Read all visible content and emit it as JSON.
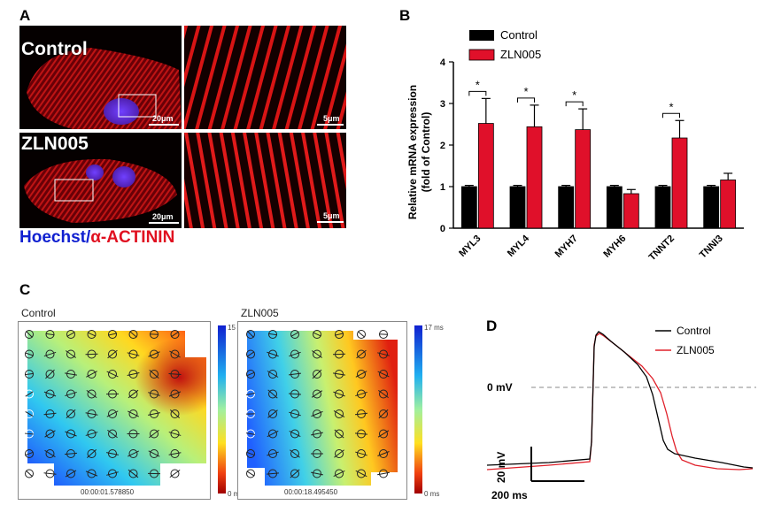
{
  "panel_labels": {
    "a": "A",
    "b": "B",
    "c": "C",
    "d": "D"
  },
  "panel_a": {
    "row1_label": "Control",
    "row2_label": "ZLN005",
    "scale_main": "20μm",
    "scale_zoom": "5μm",
    "stain_blue": "Hoechst/",
    "stain_red": "α-ACTININ"
  },
  "panel_c": {
    "left_title": "Control",
    "right_title": "ZLN005",
    "left_cbar_max": "15 ms",
    "left_cbar_min": "0 ms",
    "right_cbar_max": "17 ms",
    "right_cbar_min": "0 ms",
    "left_timestamp": "00:00:01.578850",
    "right_timestamp": "00:00:18.495450"
  },
  "panel_d": {
    "zero_label": "0 mV",
    "scale_v": "20 mV",
    "scale_t": "200 ms"
  },
  "chart_data": [
    {
      "type": "bar",
      "ylabel": "Relative mRNA expression (fold of Control)",
      "ylabel_line1": "Relative mRNA expression",
      "ylabel_line2": "(fold of Control)",
      "ylim": [
        0,
        4
      ],
      "yticks": [
        0,
        1,
        2,
        3,
        4
      ],
      "categories": [
        "MYL3",
        "MYL4",
        "MYH7",
        "MYH6",
        "TNNT2",
        "TNNI3"
      ],
      "series": [
        {
          "name": "Control",
          "color": "#000000",
          "values": [
            1.0,
            1.0,
            1.0,
            1.0,
            1.0,
            1.0
          ],
          "errors": [
            0.03,
            0.03,
            0.03,
            0.03,
            0.03,
            0.03
          ]
        },
        {
          "name": "ZLN005",
          "color": "#e0102a",
          "values": [
            2.52,
            2.44,
            2.37,
            0.83,
            2.17,
            1.16
          ],
          "errors": [
            0.6,
            0.52,
            0.5,
            0.1,
            0.42,
            0.16
          ]
        }
      ],
      "significance": [
        "*",
        "*",
        "*",
        "",
        "*",
        ""
      ],
      "legend_position": "top-left"
    },
    {
      "type": "line",
      "series": [
        {
          "name": "Control",
          "color": "#000000"
        },
        {
          "name": "ZLN005",
          "color": "#e0202a"
        }
      ],
      "legend_position": "top-right"
    }
  ]
}
